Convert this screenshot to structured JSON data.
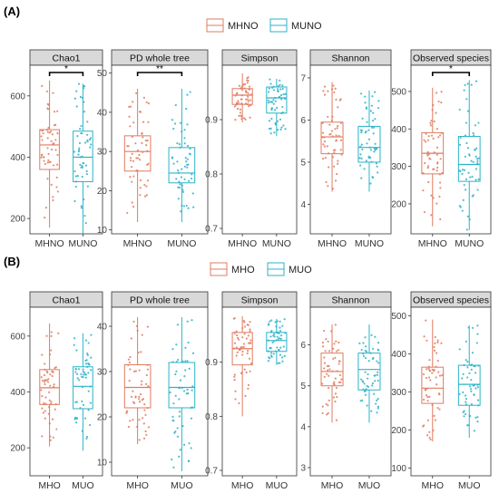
{
  "colors": {
    "group_a": "#E07B5F",
    "group_b": "#2BB3C8",
    "strip_bg": "#D9D9D9",
    "frame": "#333333"
  },
  "panels": [
    {
      "label": "(A)",
      "legend": [
        "MHNO",
        "MUNO"
      ],
      "chart_data": [
        {
          "type": "box",
          "title": "Chao1",
          "categories": [
            "MHNO",
            "MUNO"
          ],
          "ylim": [
            150,
            700
          ],
          "yticks": [
            200,
            400,
            600
          ],
          "boxes": [
            {
              "q1": 360,
              "median": 440,
              "q3": 490,
              "min": 170,
              "max": 650
            },
            {
              "q1": 320,
              "median": 400,
              "q3": 485,
              "min": 150,
              "max": 640
            }
          ],
          "significance": "*"
        },
        {
          "type": "box",
          "title": "PD whole tree",
          "categories": [
            "MHNO",
            "MUNO"
          ],
          "ylim": [
            9,
            52
          ],
          "yticks": [
            10,
            20,
            30,
            40,
            50
          ],
          "boxes": [
            {
              "q1": 25,
              "median": 30,
              "q3": 34,
              "min": 12,
              "max": 46
            },
            {
              "q1": 22,
              "median": 24.5,
              "q3": 31,
              "min": 12,
              "max": 46
            }
          ],
          "significance": "**"
        },
        {
          "type": "box",
          "title": "Simpson",
          "categories": [
            "MHNO",
            "MUNO"
          ],
          "ylim": [
            0.69,
            1.0
          ],
          "yticks": [
            0.7,
            0.8,
            0.9
          ],
          "boxes": [
            {
              "q1": 0.928,
              "median": 0.945,
              "q3": 0.957,
              "min": 0.895,
              "max": 0.985
            },
            {
              "q1": 0.912,
              "median": 0.94,
              "q3": 0.96,
              "min": 0.87,
              "max": 0.975
            }
          ],
          "significance": ""
        },
        {
          "type": "box",
          "title": "Shannon",
          "categories": [
            "MHNO",
            "MUNO"
          ],
          "ylim": [
            3.3,
            7.3
          ],
          "yticks": [
            4,
            5,
            6,
            7
          ],
          "boxes": [
            {
              "q1": 5.2,
              "median": 5.6,
              "q3": 5.95,
              "min": 4.3,
              "max": 6.9
            },
            {
              "q1": 5.0,
              "median": 5.35,
              "q3": 5.85,
              "min": 4.3,
              "max": 6.7
            }
          ],
          "significance": ""
        },
        {
          "type": "box",
          "title": "Observed species",
          "categories": [
            "MHNO",
            "MUNO"
          ],
          "ylim": [
            120,
            570
          ],
          "yticks": [
            200,
            300,
            400,
            500
          ],
          "boxes": [
            {
              "q1": 280,
              "median": 335,
              "q3": 390,
              "min": 140,
              "max": 510
            },
            {
              "q1": 260,
              "median": 305,
              "q3": 380,
              "min": 130,
              "max": 530
            }
          ],
          "significance": "*"
        }
      ]
    },
    {
      "label": "(B)",
      "legend": [
        "MHO",
        "MUO"
      ],
      "chart_data": [
        {
          "type": "box",
          "title": "Chao1",
          "categories": [
            "MHO",
            "MUO"
          ],
          "ylim": [
            100,
            700
          ],
          "yticks": [
            200,
            400,
            600
          ],
          "boxes": [
            {
              "q1": 355,
              "median": 415,
              "q3": 480,
              "min": 205,
              "max": 645
            },
            {
              "q1": 340,
              "median": 420,
              "q3": 490,
              "min": 190,
              "max": 610
            }
          ],
          "significance": ""
        },
        {
          "type": "box",
          "title": "PD whole tree",
          "categories": [
            "MHO",
            "MUO"
          ],
          "ylim": [
            7,
            44
          ],
          "yticks": [
            10,
            20,
            30,
            40
          ],
          "boxes": [
            {
              "q1": 22,
              "median": 26.5,
              "q3": 31.5,
              "min": 14,
              "max": 42
            },
            {
              "q1": 22,
              "median": 26.5,
              "q3": 32,
              "min": 8,
              "max": 42
            }
          ],
          "significance": ""
        },
        {
          "type": "box",
          "title": "Simpson",
          "categories": [
            "MHO",
            "MUO"
          ],
          "ylim": [
            0.69,
            1.0
          ],
          "yticks": [
            0.7,
            0.8,
            0.9
          ],
          "boxes": [
            {
              "q1": 0.895,
              "median": 0.925,
              "q3": 0.955,
              "min": 0.8,
              "max": 0.985
            },
            {
              "q1": 0.92,
              "median": 0.94,
              "q3": 0.955,
              "min": 0.895,
              "max": 0.98
            }
          ],
          "significance": ""
        },
        {
          "type": "box",
          "title": "Shannon",
          "categories": [
            "MHO",
            "MUO"
          ],
          "ylim": [
            2.8,
            6.9
          ],
          "yticks": [
            3,
            4,
            5,
            6
          ],
          "boxes": [
            {
              "q1": 5.0,
              "median": 5.35,
              "q3": 5.8,
              "min": 4.1,
              "max": 6.5
            },
            {
              "q1": 4.9,
              "median": 5.4,
              "q3": 5.8,
              "min": 4.1,
              "max": 6.5
            }
          ],
          "significance": ""
        },
        {
          "type": "box",
          "title": "Observed species",
          "categories": [
            "MHO",
            "MUO"
          ],
          "ylim": [
            80,
            520
          ],
          "yticks": [
            100,
            200,
            300,
            400,
            500
          ],
          "boxes": [
            {
              "q1": 270,
              "median": 310,
              "q3": 365,
              "min": 170,
              "max": 490
            },
            {
              "q1": 265,
              "median": 320,
              "q3": 370,
              "min": 180,
              "max": 475
            }
          ],
          "significance": ""
        }
      ]
    }
  ]
}
